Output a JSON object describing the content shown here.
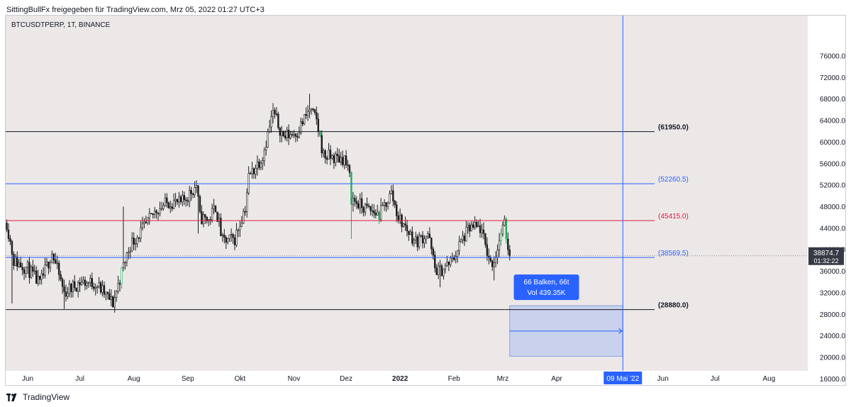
{
  "header": {
    "shared_by": "SittingBullFx freigegeben für TradingView.com, Mrz 05, 2022 01:27 UTC+3"
  },
  "symbol": {
    "label": "BTCUSDTPERP, 1T, BINANCE"
  },
  "footer": {
    "brand": "TradingView"
  },
  "colors": {
    "plot_bg": "#ece8e8",
    "candle": "#1c1c1c",
    "candle_highlight": "#22ab5a",
    "black_level": "#131722",
    "blue_level": "#2962ff",
    "red_level": "#e0183e",
    "price_tag_bg": "#363a45",
    "box_fill": "#c3cdec",
    "box_stroke": "#8aa0e0",
    "tooltip_bg": "#2962ff"
  },
  "chart_data": {
    "type": "candlestick",
    "title": "",
    "y_axis": {
      "ticks": [
        "76000.0",
        "72000.0",
        "68000.0",
        "64000.0",
        "60000.0",
        "56000.0",
        "52000.0",
        "48000.0",
        "44000.0",
        "40000.0",
        "36000.0",
        "32000.0",
        "28000.0",
        "24000.0",
        "20000.0",
        "16000.0"
      ],
      "ylim": [
        14500,
        78500
      ]
    },
    "x_axis": {
      "ticks": [
        "Jun",
        "Jul",
        "Aug",
        "Sep",
        "Okt",
        "Nov",
        "Dez",
        "2022",
        "Feb",
        "Mrz",
        "Apr",
        "Jun",
        "Jul",
        "Aug"
      ],
      "cursor_label": "09 Mai '22"
    },
    "series_path": [
      [
        "2021-05-20",
        45000
      ],
      [
        "2021-05-24",
        38000
      ],
      [
        "2021-06-01",
        36500
      ],
      [
        "2021-06-08",
        33500
      ],
      [
        "2021-06-15",
        39500
      ],
      [
        "2021-06-22",
        32000
      ],
      [
        "2021-07-01",
        34000
      ],
      [
        "2021-07-10",
        33800
      ],
      [
        "2021-07-20",
        30000
      ],
      [
        "2021-07-26",
        37000
      ],
      [
        "2021-07-30",
        41000
      ],
      [
        "2021-08-08",
        44500
      ],
      [
        "2021-08-14",
        47500
      ],
      [
        "2021-08-22",
        49000
      ],
      [
        "2021-08-28",
        48500
      ],
      [
        "2021-09-06",
        52000
      ],
      [
        "2021-09-08",
        46000
      ],
      [
        "2021-09-13",
        45500
      ],
      [
        "2021-09-17",
        48000
      ],
      [
        "2021-09-21",
        41500
      ],
      [
        "2021-09-28",
        42000
      ],
      [
        "2021-10-04",
        48000
      ],
      [
        "2021-10-06",
        53500
      ],
      [
        "2021-10-14",
        57500
      ],
      [
        "2021-10-20",
        65500
      ],
      [
        "2021-10-26",
        61000
      ],
      [
        "2021-11-03",
        62000
      ],
      [
        "2021-11-10",
        66000
      ],
      [
        "2021-11-14",
        64000
      ],
      [
        "2021-11-18",
        57500
      ],
      [
        "2021-11-25",
        57000
      ],
      [
        "2021-11-30",
        57000
      ],
      [
        "2021-12-03",
        53500
      ],
      [
        "2021-12-04",
        49500
      ],
      [
        "2021-12-10",
        48000
      ],
      [
        "2021-12-20",
        46500
      ],
      [
        "2021-12-27",
        50500
      ],
      [
        "2021-12-31",
        46000
      ],
      [
        "2022-01-10",
        41500
      ],
      [
        "2022-01-17",
        43000
      ],
      [
        "2022-01-21",
        36500
      ],
      [
        "2022-01-24",
        36000
      ],
      [
        "2022-01-31",
        38000
      ],
      [
        "2022-02-05",
        41500
      ],
      [
        "2022-02-10",
        44000
      ],
      [
        "2022-02-16",
        44000
      ],
      [
        "2022-02-22",
        37500
      ],
      [
        "2022-02-24",
        38000
      ],
      [
        "2022-02-28",
        43000
      ],
      [
        "2022-03-02",
        44500
      ],
      [
        "2022-03-05",
        38874.7
      ]
    ],
    "highlight_candles": [
      "2021-07-25",
      "2021-11-16",
      "2021-12-04",
      "2021-12-20",
      "2022-02-28",
      "2022-03-03"
    ],
    "horizontal_levels": [
      {
        "label": "(61950.0)",
        "value": 61950,
        "style": "black"
      },
      {
        "label": "(52260.5)",
        "value": 52260.5,
        "style": "blue"
      },
      {
        "label": "(45415.0)",
        "value": 45415,
        "style": "red"
      },
      {
        "label": "(38569.5)",
        "value": 38569.5,
        "style": "blue"
      },
      {
        "label": "(28880.0)",
        "value": 28880,
        "style": "black"
      }
    ],
    "current_price": {
      "label": "38874.7",
      "countdown": "01:32:22",
      "value": 38874.7
    },
    "vertical_line_date": "2022-05-09",
    "measure_box": {
      "line1": "66 Balken, 66t",
      "line2": "Vol 439.35K",
      "start": "2022-03-05",
      "end": "2022-05-09",
      "y_top": 29600,
      "y_bottom": 20200,
      "arrow_value": 24900
    }
  }
}
